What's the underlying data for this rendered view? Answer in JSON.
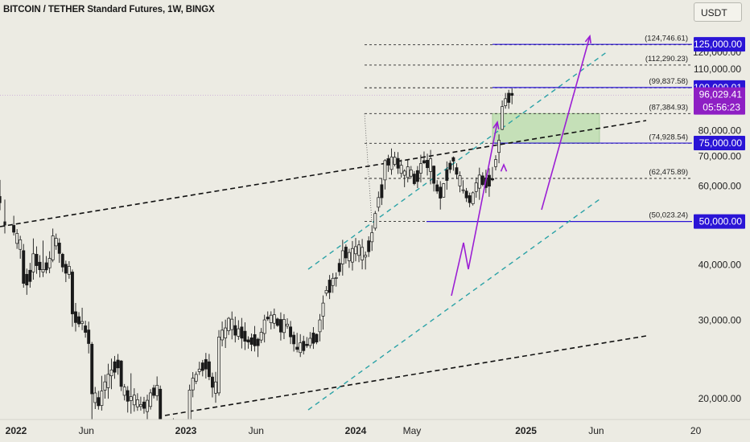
{
  "header": {
    "title": "BITCOIN / TETHER Standard Futures, 1W, BINGX",
    "currency": "USDT"
  },
  "colors": {
    "background": "#ecebe3",
    "candle_up": "#1a1a1a",
    "candle_down": "#1a1a1a",
    "price_label_blue": "#2a14d6",
    "price_label_purple": "#8e1fc4",
    "arrow_purple": "#9b1ed4",
    "channel_teal": "#2aa2a6",
    "zone_green": "#b8dcaa"
  },
  "chart_data": {
    "type": "candlestick",
    "title": "BITCOIN / TETHER Standard Futures, 1W, BINGX",
    "y_axis": {
      "scale": "log",
      "range": [
        15500,
        145000
      ],
      "ticks": [
        {
          "value": 20000,
          "label": "20,000.00"
        },
        {
          "value": 30000,
          "label": "30,000.00"
        },
        {
          "value": 40000,
          "label": "40,000.00"
        },
        {
          "value": 60000,
          "label": "60,000.00"
        },
        {
          "value": 70000,
          "label": "70,000.00"
        },
        {
          "value": 80000,
          "label": "80,000.00"
        },
        {
          "value": 110000,
          "label": "110,000.00"
        },
        {
          "value": 120000,
          "label": "120,000.00"
        }
      ]
    },
    "x_axis": {
      "ticks": [
        {
          "date": "2022-01",
          "label": "2022"
        },
        {
          "date": "2022-06",
          "label": "Jun"
        },
        {
          "date": "2023-01",
          "label": "2023"
        },
        {
          "date": "2023-06",
          "label": "Jun"
        },
        {
          "date": "2024-01",
          "label": "2024"
        },
        {
          "date": "2024-05",
          "label": "May"
        },
        {
          "date": "2025-01",
          "label": "2025"
        },
        {
          "date": "2025-06",
          "label": "Jun"
        },
        {
          "date": "2026-01",
          "label": "20"
        }
      ]
    },
    "price_labels": [
      {
        "value": 125000,
        "label": "125,000.00",
        "style": "blue"
      },
      {
        "value": 100000,
        "label": "100,000.01",
        "style": "blue"
      },
      {
        "value": 96029.41,
        "label": "96,029.41",
        "sublabel": "05:56:23",
        "style": "purple"
      },
      {
        "value": 75000,
        "label": "75,000.00",
        "style": "blue"
      },
      {
        "value": 50000,
        "label": "50,000.00",
        "style": "blue"
      }
    ],
    "horizontal_levels": [
      {
        "value": 124746.61,
        "label": "(124,746.61)"
      },
      {
        "value": 112290.23,
        "label": "(112,290.23)"
      },
      {
        "value": 99837.58,
        "label": "(99,837.58)"
      },
      {
        "value": 87384.93,
        "label": "(87,384.93)"
      },
      {
        "value": 74928.54,
        "label": "(74,928.54)"
      },
      {
        "value": 62475.89,
        "label": "(62,475.89)"
      },
      {
        "value": 50023.24,
        "label": "(50,023.24)"
      }
    ],
    "current_price": 96029.41,
    "countdown": "05:56:23",
    "candles": [
      {
        "date": "2021-12-27",
        "o": 49000,
        "h": 51500,
        "l": 46500,
        "c": 47300
      },
      {
        "date": "2022-01-17",
        "o": 43000,
        "h": 44500,
        "l": 35500,
        "c": 36300
      },
      {
        "date": "2022-02-07",
        "o": 38500,
        "h": 45800,
        "l": 37000,
        "c": 42300
      },
      {
        "date": "2022-02-28",
        "o": 38500,
        "h": 45300,
        "l": 37500,
        "c": 39000
      },
      {
        "date": "2022-03-21",
        "o": 41000,
        "h": 48200,
        "l": 40500,
        "c": 46400
      },
      {
        "date": "2022-04-11",
        "o": 42200,
        "h": 42500,
        "l": 38500,
        "c": 39500
      },
      {
        "date": "2022-05-02",
        "o": 38500,
        "h": 39000,
        "l": 29000,
        "c": 31000
      },
      {
        "date": "2022-05-23",
        "o": 29500,
        "h": 32000,
        "l": 28500,
        "c": 29800
      },
      {
        "date": "2022-06-13",
        "o": 26500,
        "h": 26800,
        "l": 17600,
        "c": 20500
      },
      {
        "date": "2022-07-04",
        "o": 19300,
        "h": 22500,
        "l": 18800,
        "c": 20800
      },
      {
        "date": "2022-07-25",
        "o": 22500,
        "h": 24600,
        "l": 21000,
        "c": 23200
      },
      {
        "date": "2022-08-15",
        "o": 24300,
        "h": 24400,
        "l": 20800,
        "c": 21300
      },
      {
        "date": "2022-09-05",
        "o": 19800,
        "h": 22800,
        "l": 18500,
        "c": 20200
      },
      {
        "date": "2022-09-26",
        "o": 19200,
        "h": 20200,
        "l": 18800,
        "c": 19400
      },
      {
        "date": "2022-10-17",
        "o": 19200,
        "h": 21000,
        "l": 18900,
        "c": 20600
      },
      {
        "date": "2022-11-07",
        "o": 21000,
        "h": 21400,
        "l": 15500,
        "c": 16300
      },
      {
        "date": "2022-11-28",
        "o": 16400,
        "h": 17400,
        "l": 16200,
        "c": 17100
      },
      {
        "date": "2022-12-19",
        "o": 16800,
        "h": 17000,
        "l": 16300,
        "c": 16500
      },
      {
        "date": "2023-01-09",
        "o": 17200,
        "h": 21500,
        "l": 17100,
        "c": 20900
      },
      {
        "date": "2023-01-30",
        "o": 23000,
        "h": 24200,
        "l": 22600,
        "c": 23300
      },
      {
        "date": "2023-02-20",
        "o": 24200,
        "h": 25200,
        "l": 22000,
        "c": 22400
      },
      {
        "date": "2023-03-13",
        "o": 20600,
        "h": 28500,
        "l": 20300,
        "c": 27500
      },
      {
        "date": "2023-04-03",
        "o": 28400,
        "h": 30500,
        "l": 27800,
        "c": 30300
      },
      {
        "date": "2023-04-24",
        "o": 27600,
        "h": 30000,
        "l": 27100,
        "c": 28700
      },
      {
        "date": "2023-05-15",
        "o": 27100,
        "h": 27600,
        "l": 25900,
        "c": 26800
      },
      {
        "date": "2023-06-05",
        "o": 27200,
        "h": 27400,
        "l": 24800,
        "c": 26300
      },
      {
        "date": "2023-06-26",
        "o": 30500,
        "h": 31400,
        "l": 29900,
        "c": 30200
      },
      {
        "date": "2023-07-17",
        "o": 30200,
        "h": 30400,
        "l": 29000,
        "c": 29200
      },
      {
        "date": "2023-08-07",
        "o": 29100,
        "h": 30300,
        "l": 28700,
        "c": 29400
      },
      {
        "date": "2023-08-28",
        "o": 26100,
        "h": 28100,
        "l": 25400,
        "c": 25800
      },
      {
        "date": "2023-09-18",
        "o": 26500,
        "h": 27500,
        "l": 26000,
        "c": 26300
      },
      {
        "date": "2023-10-09",
        "o": 27900,
        "h": 28000,
        "l": 26500,
        "c": 26800
      },
      {
        "date": "2023-10-30",
        "o": 34500,
        "h": 35800,
        "l": 34000,
        "c": 35000
      },
      {
        "date": "2023-11-20",
        "o": 37400,
        "h": 38400,
        "l": 35700,
        "c": 37400
      },
      {
        "date": "2023-12-11",
        "o": 43800,
        "h": 44400,
        "l": 40200,
        "c": 41400
      },
      {
        "date": "2024-01-01",
        "o": 42300,
        "h": 45900,
        "l": 40700,
        "c": 43900
      },
      {
        "date": "2024-01-22",
        "o": 41600,
        "h": 42800,
        "l": 39000,
        "c": 42000
      },
      {
        "date": "2024-02-12",
        "o": 48300,
        "h": 52800,
        "l": 47700,
        "c": 52100
      },
      {
        "date": "2024-03-04",
        "o": 62000,
        "h": 69000,
        "l": 59000,
        "c": 68500
      },
      {
        "date": "2024-03-25",
        "o": 67200,
        "h": 71700,
        "l": 66500,
        "c": 69700
      },
      {
        "date": "2024-04-15",
        "o": 63500,
        "h": 65500,
        "l": 59700,
        "c": 64900
      },
      {
        "date": "2024-05-06",
        "o": 63900,
        "h": 64900,
        "l": 60300,
        "c": 60800
      },
      {
        "date": "2024-05-27",
        "o": 68500,
        "h": 71800,
        "l": 67300,
        "c": 67700
      },
      {
        "date": "2024-06-17",
        "o": 66600,
        "h": 66800,
        "l": 58400,
        "c": 60900
      },
      {
        "date": "2024-07-08",
        "o": 56700,
        "h": 61000,
        "l": 56600,
        "c": 60800
      },
      {
        "date": "2024-07-29",
        "o": 69600,
        "h": 70000,
        "l": 65000,
        "c": 68300
      },
      {
        "date": "2024-08-19",
        "o": 58700,
        "h": 61900,
        "l": 57800,
        "c": 58900
      },
      {
        "date": "2024-09-09",
        "o": 54800,
        "h": 58400,
        "l": 54300,
        "c": 58000
      },
      {
        "date": "2024-09-30",
        "o": 63300,
        "h": 64500,
        "l": 60000,
        "c": 60500
      },
      {
        "date": "2024-10-21",
        "o": 62400,
        "h": 66300,
        "l": 61600,
        "c": 62000
      },
      {
        "date": "2024-11-11",
        "o": 80500,
        "h": 93500,
        "l": 80200,
        "c": 90600
      },
      {
        "date": "2024-12-02",
        "o": 97000,
        "h": 99600,
        "l": 91700,
        "c": 96000
      }
    ]
  },
  "axis_placeholder": ""
}
